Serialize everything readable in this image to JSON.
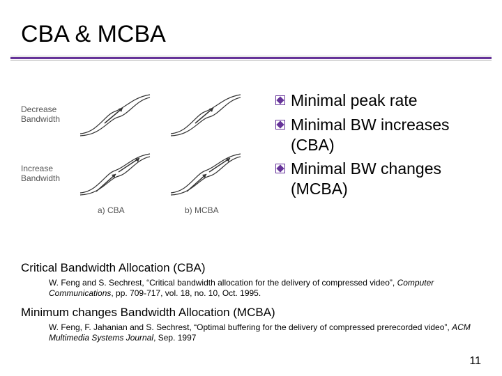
{
  "title": "CBA & MCBA",
  "bullets": [
    "Minimal peak rate",
    "Minimal BW increases (CBA)",
    "Minimal BW changes (MCBA)"
  ],
  "diagram": {
    "row_labels": [
      "Decrease\nBandwidth",
      "Increase\nBandwidth"
    ],
    "captions": [
      "a) CBA",
      "b) MCBA"
    ],
    "curve_color": "#333333",
    "arrow_color": "#333333",
    "label_color": "#555555"
  },
  "references": [
    {
      "heading": "Critical Bandwidth Allocation (CBA)",
      "text_before": "W. Feng and S. Sechrest, “Critical bandwidth allocation for the delivery of compressed video”, ",
      "text_italic": "Computer Communications",
      "text_after": ", pp. 709-717, vol. 18, no. 10, Oct. 1995."
    },
    {
      "heading": "Minimum changes Bandwidth Allocation (MCBA)",
      "text_before": "W. Feng, F. Jahanian and S. Sechrest, “Optimal buffering for the delivery of compressed prerecorded video”, ",
      "text_italic": "ACM Multimedia Systems Journal",
      "text_after": ", Sep. 1997"
    }
  ],
  "page_number": "11",
  "colors": {
    "accent": "#663399",
    "bullet": "#663399",
    "light_bar": "#c0c0c0"
  }
}
